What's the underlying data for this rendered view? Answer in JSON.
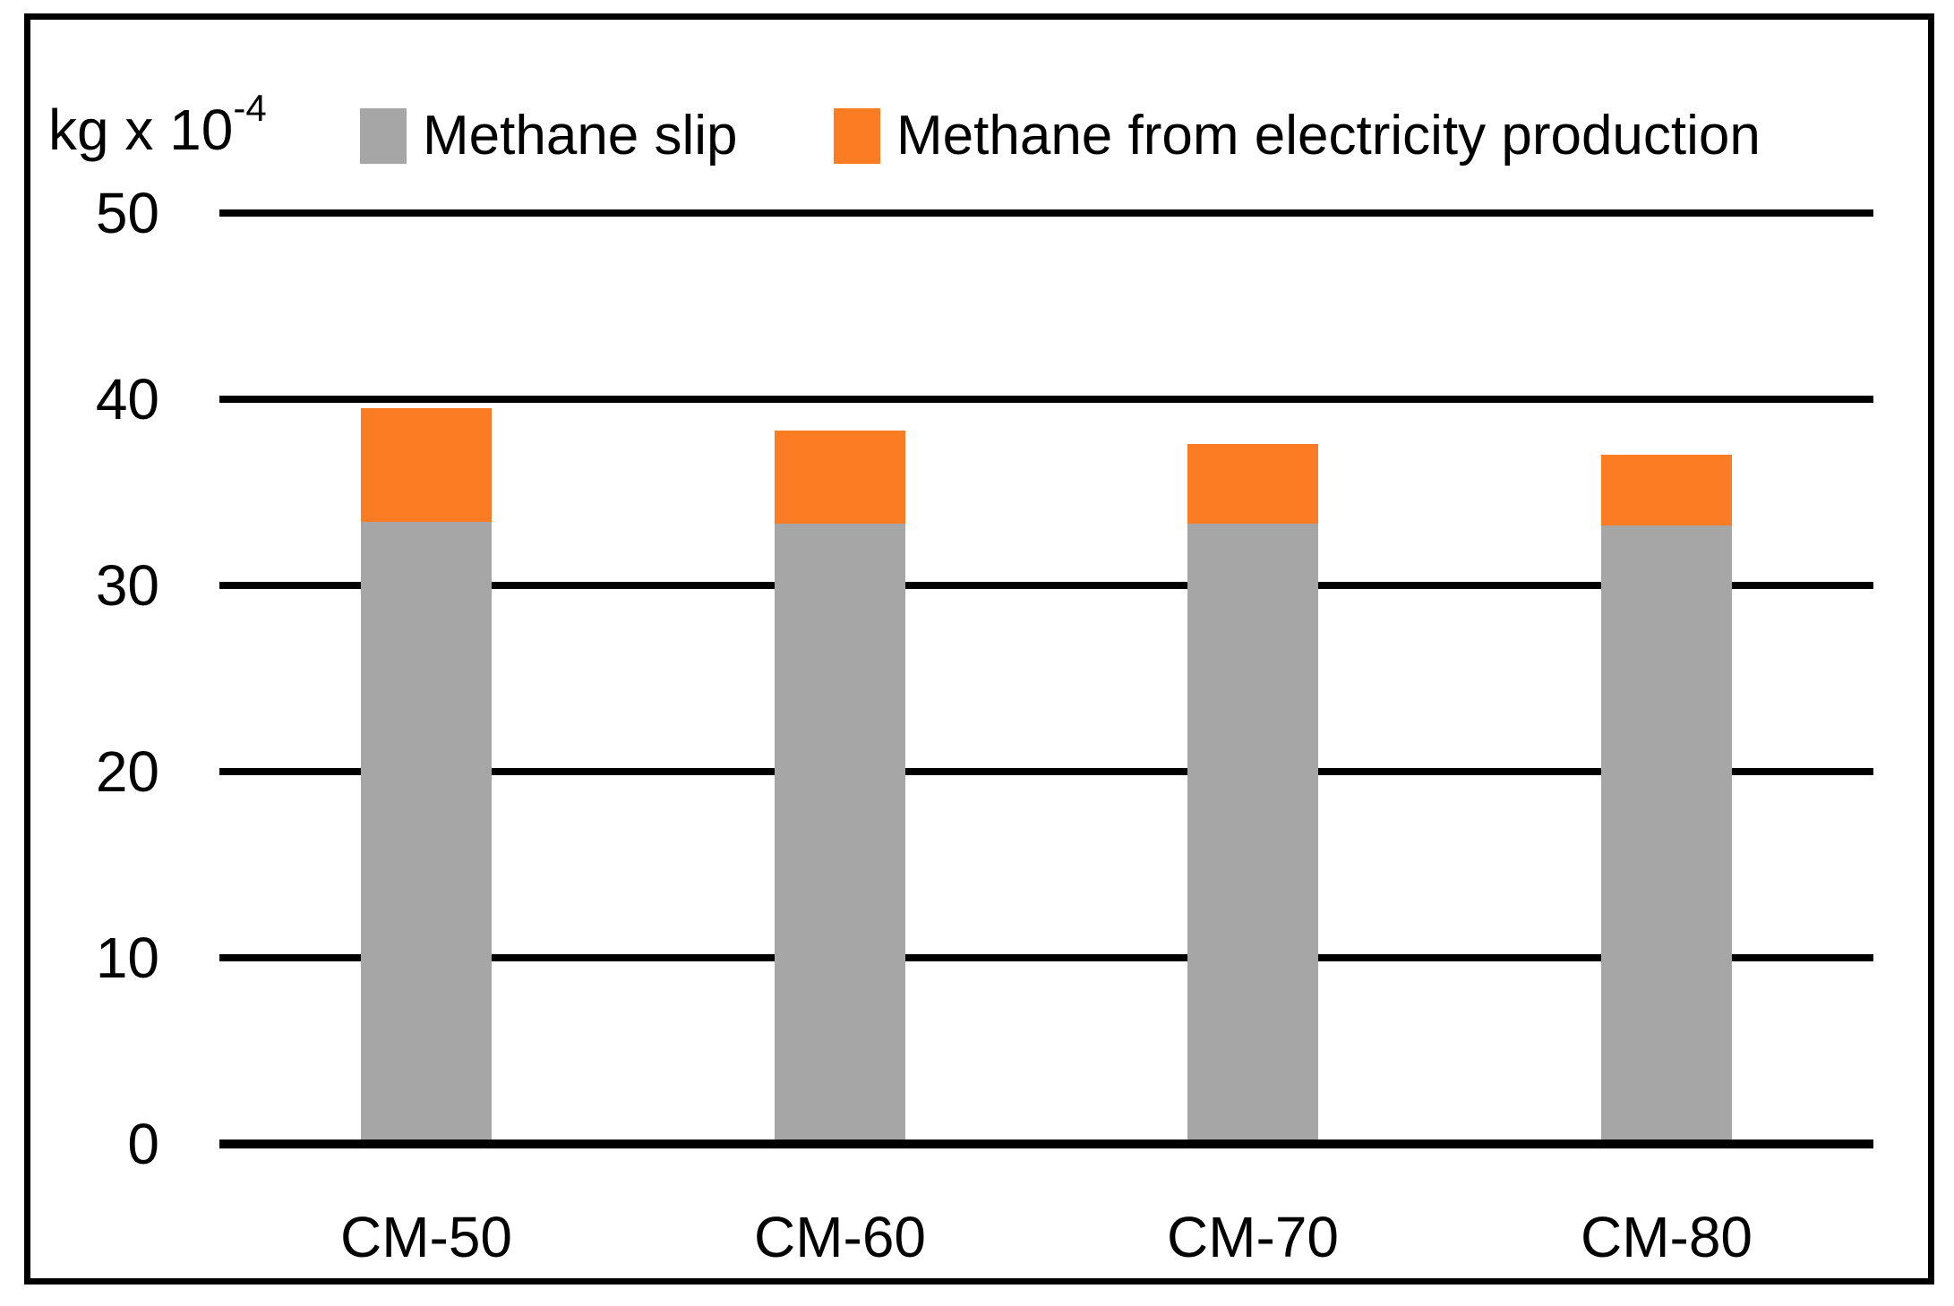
{
  "figure": {
    "unit_label": {
      "base": "kg x 10",
      "exponent": "-4",
      "full": "kg x 10-4"
    }
  },
  "legend": [
    {
      "label": "Methane slip",
      "color": "#A6A6A6"
    },
    {
      "label": "Methane from electricity production",
      "color": "#FB7C23"
    }
  ],
  "colors": {
    "methane_slip": "#A6A6A6",
    "methane_electricity": "#FB7C23",
    "axis_and_grid": "#000000",
    "background": "#FFFFFF"
  },
  "chart_data": {
    "type": "bar",
    "stacked": true,
    "title": "",
    "ylabel": "kg x 10-4",
    "xlabel": "",
    "categories": [
      "CM-50",
      "CM-60",
      "CM-70",
      "CM-80"
    ],
    "series": [
      {
        "name": "Methane slip",
        "color": "#A6A6A6",
        "values": [
          33.4,
          33.3,
          33.3,
          33.2
        ]
      },
      {
        "name": "Methane from electricity production",
        "color": "#FB7C23",
        "values": [
          6.1,
          5.0,
          4.3,
          3.8
        ]
      }
    ],
    "stack_totals": [
      39.5,
      38.3,
      37.6,
      37.0
    ],
    "yticks": [
      0,
      10,
      20,
      30,
      40,
      50
    ],
    "ylim": [
      0,
      50
    ],
    "grid": "horizontal",
    "legend_position": "top"
  }
}
